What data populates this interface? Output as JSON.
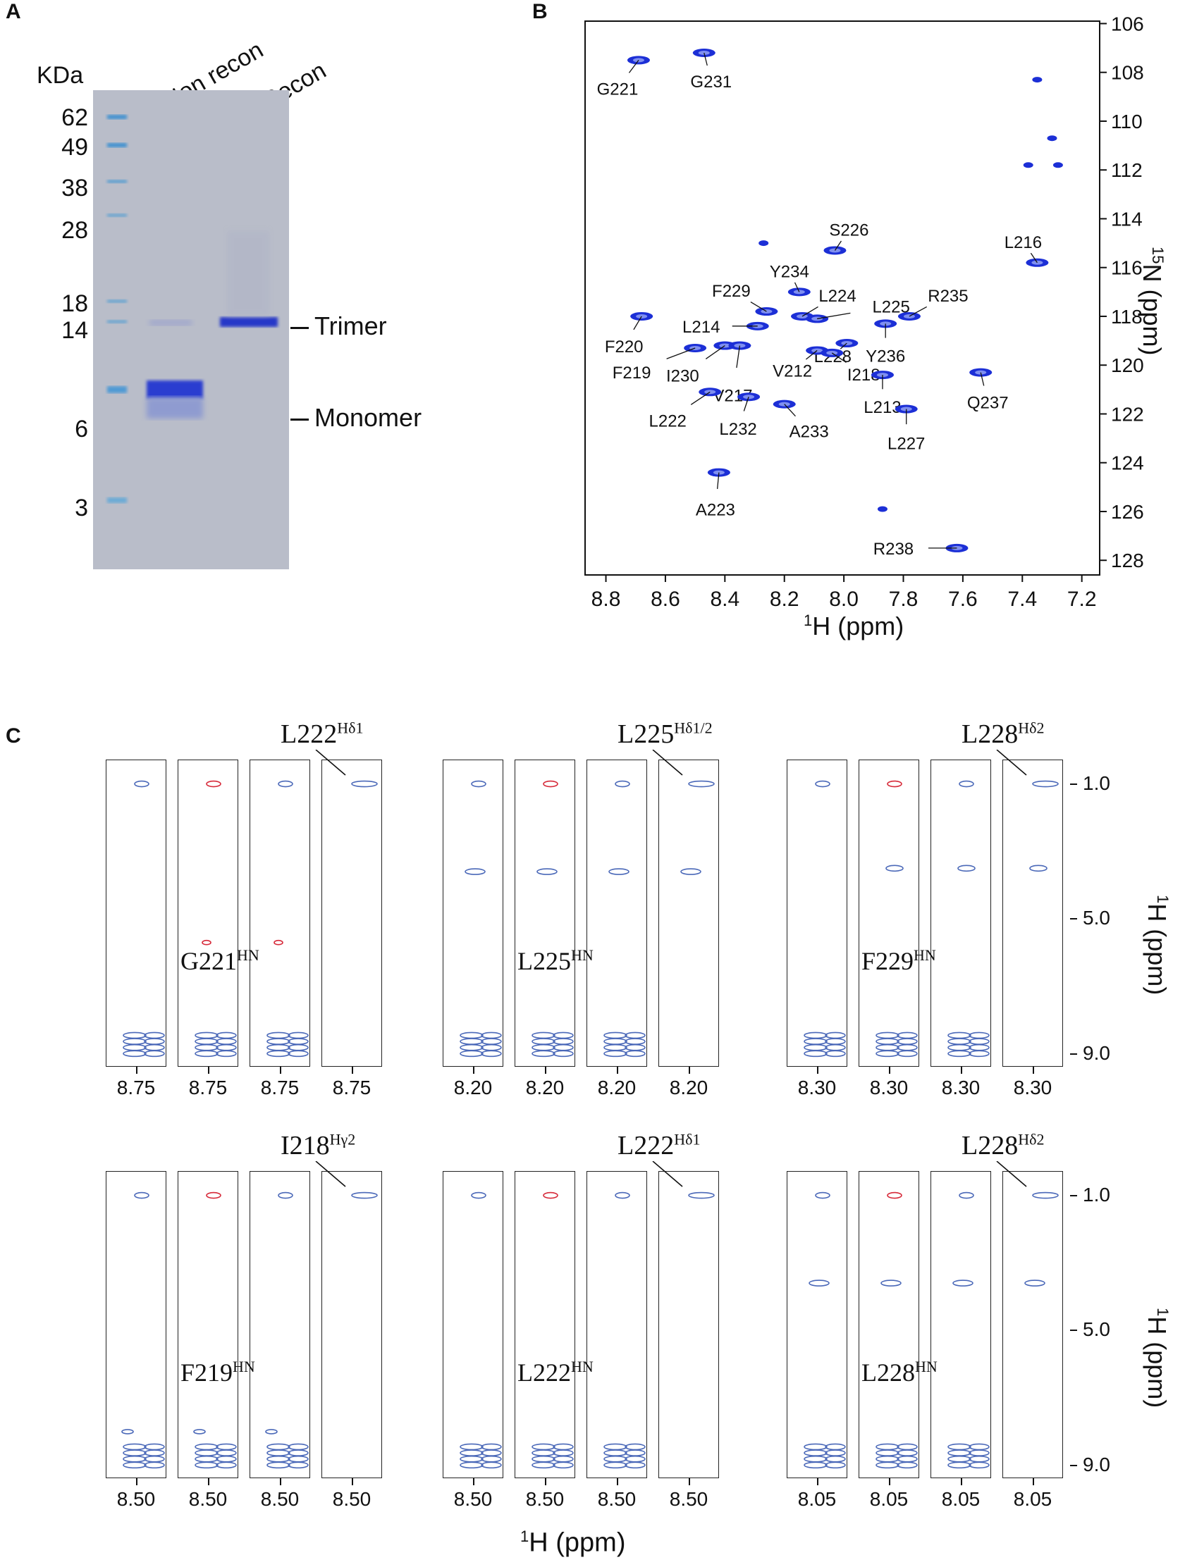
{
  "panelA": {
    "letter": "A",
    "unit": "KDa",
    "lane_labels": [
      "Non recon",
      "Recon"
    ],
    "markers": [
      "62",
      "49",
      "38",
      "28",
      "18",
      "14",
      "6",
      "3"
    ],
    "band_labels": [
      "Trimer",
      "Monomer"
    ]
  },
  "panelB": {
    "letter": "B",
    "xlabel_sup": "1",
    "xlabel": "H (ppm)",
    "ylabel_sup": "15",
    "ylabel": "N (ppm)",
    "x_ticks": [
      "8.8",
      "8.6",
      "8.4",
      "8.2",
      "8.0",
      "7.8",
      "7.6",
      "7.4",
      "7.2"
    ],
    "y_ticks": [
      "106",
      "108",
      "110",
      "112",
      "114",
      "116",
      "118",
      "120",
      "122",
      "124",
      "126",
      "128"
    ],
    "peaks": [
      {
        "label": "G221",
        "h": 8.69,
        "n": 107.5
      },
      {
        "label": "G231",
        "h": 8.47,
        "n": 107.2
      },
      {
        "label": "S226",
        "h": 8.03,
        "n": 115.3
      },
      {
        "label": "L216",
        "h": 7.35,
        "n": 115.8
      },
      {
        "label": "Y234",
        "h": 8.15,
        "n": 117.0
      },
      {
        "label": "F229",
        "h": 8.26,
        "n": 117.8
      },
      {
        "label": "L224",
        "h": 8.14,
        "n": 118.0
      },
      {
        "label": "L225",
        "h": 8.09,
        "n": 118.1
      },
      {
        "label": "R235",
        "h": 7.78,
        "n": 118.0
      },
      {
        "label": "F220",
        "h": 8.68,
        "n": 118.0
      },
      {
        "label": "L214",
        "h": 8.29,
        "n": 118.4
      },
      {
        "label": "L228",
        "h": 7.99,
        "n": 119.1
      },
      {
        "label": "Y236",
        "h": 7.86,
        "n": 118.3
      },
      {
        "label": "F219",
        "h": 8.5,
        "n": 119.3
      },
      {
        "label": "I230",
        "h": 8.4,
        "n": 119.2
      },
      {
        "label": "V217",
        "h": 8.35,
        "n": 119.2
      },
      {
        "label": "V212",
        "h": 8.09,
        "n": 119.4
      },
      {
        "label": "I218",
        "h": 8.04,
        "n": 119.5
      },
      {
        "label": "L213",
        "h": 7.87,
        "n": 120.4
      },
      {
        "label": "Q237",
        "h": 7.54,
        "n": 120.3
      },
      {
        "label": "L222",
        "h": 8.45,
        "n": 121.1
      },
      {
        "label": "L232",
        "h": 8.32,
        "n": 121.3
      },
      {
        "label": "A233",
        "h": 8.2,
        "n": 121.6
      },
      {
        "label": "L227",
        "h": 7.79,
        "n": 121.8
      },
      {
        "label": "A223",
        "h": 8.42,
        "n": 124.4
      },
      {
        "label": "R238",
        "h": 7.62,
        "n": 127.5
      }
    ]
  },
  "panelC": {
    "letter": "C",
    "ylabel_sup": "1",
    "ylabel": "H (ppm)",
    "xlabel_sup": "1",
    "xlabel": "H (ppm)",
    "y_ticks": [
      "1.0",
      "5.0",
      "9.0"
    ],
    "groups": [
      {
        "hn_base": "G221",
        "hn_sup": "HN",
        "tag_base": "L222",
        "tag_sup": "Hδ1",
        "tick": "8.75"
      },
      {
        "hn_base": "L225",
        "hn_sup": "HN",
        "tag_base": "L225",
        "tag_sup": "Hδ1/2",
        "tick": "8.20"
      },
      {
        "hn_base": "F229",
        "hn_sup": "HN",
        "tag_base": "L228",
        "tag_sup": "Hδ2",
        "tick": "8.30"
      },
      {
        "hn_base": "F219",
        "hn_sup": "HN",
        "tag_base": "I218",
        "tag_sup": "Hγ2",
        "tick": "8.50"
      },
      {
        "hn_base": "L222",
        "hn_sup": "HN",
        "tag_base": "L222",
        "tag_sup": "Hδ1",
        "tick": "8.50"
      },
      {
        "hn_base": "L228",
        "hn_sup": "HN",
        "tag_base": "L228",
        "tag_sup": "Hδ2",
        "tick": "8.05"
      }
    ]
  },
  "colors": {
    "peak": "#1c2fd6",
    "contour": "#4a68b8",
    "contour_red": "#d62838",
    "marker": "#3b8fd0",
    "band": "#2638c8"
  }
}
